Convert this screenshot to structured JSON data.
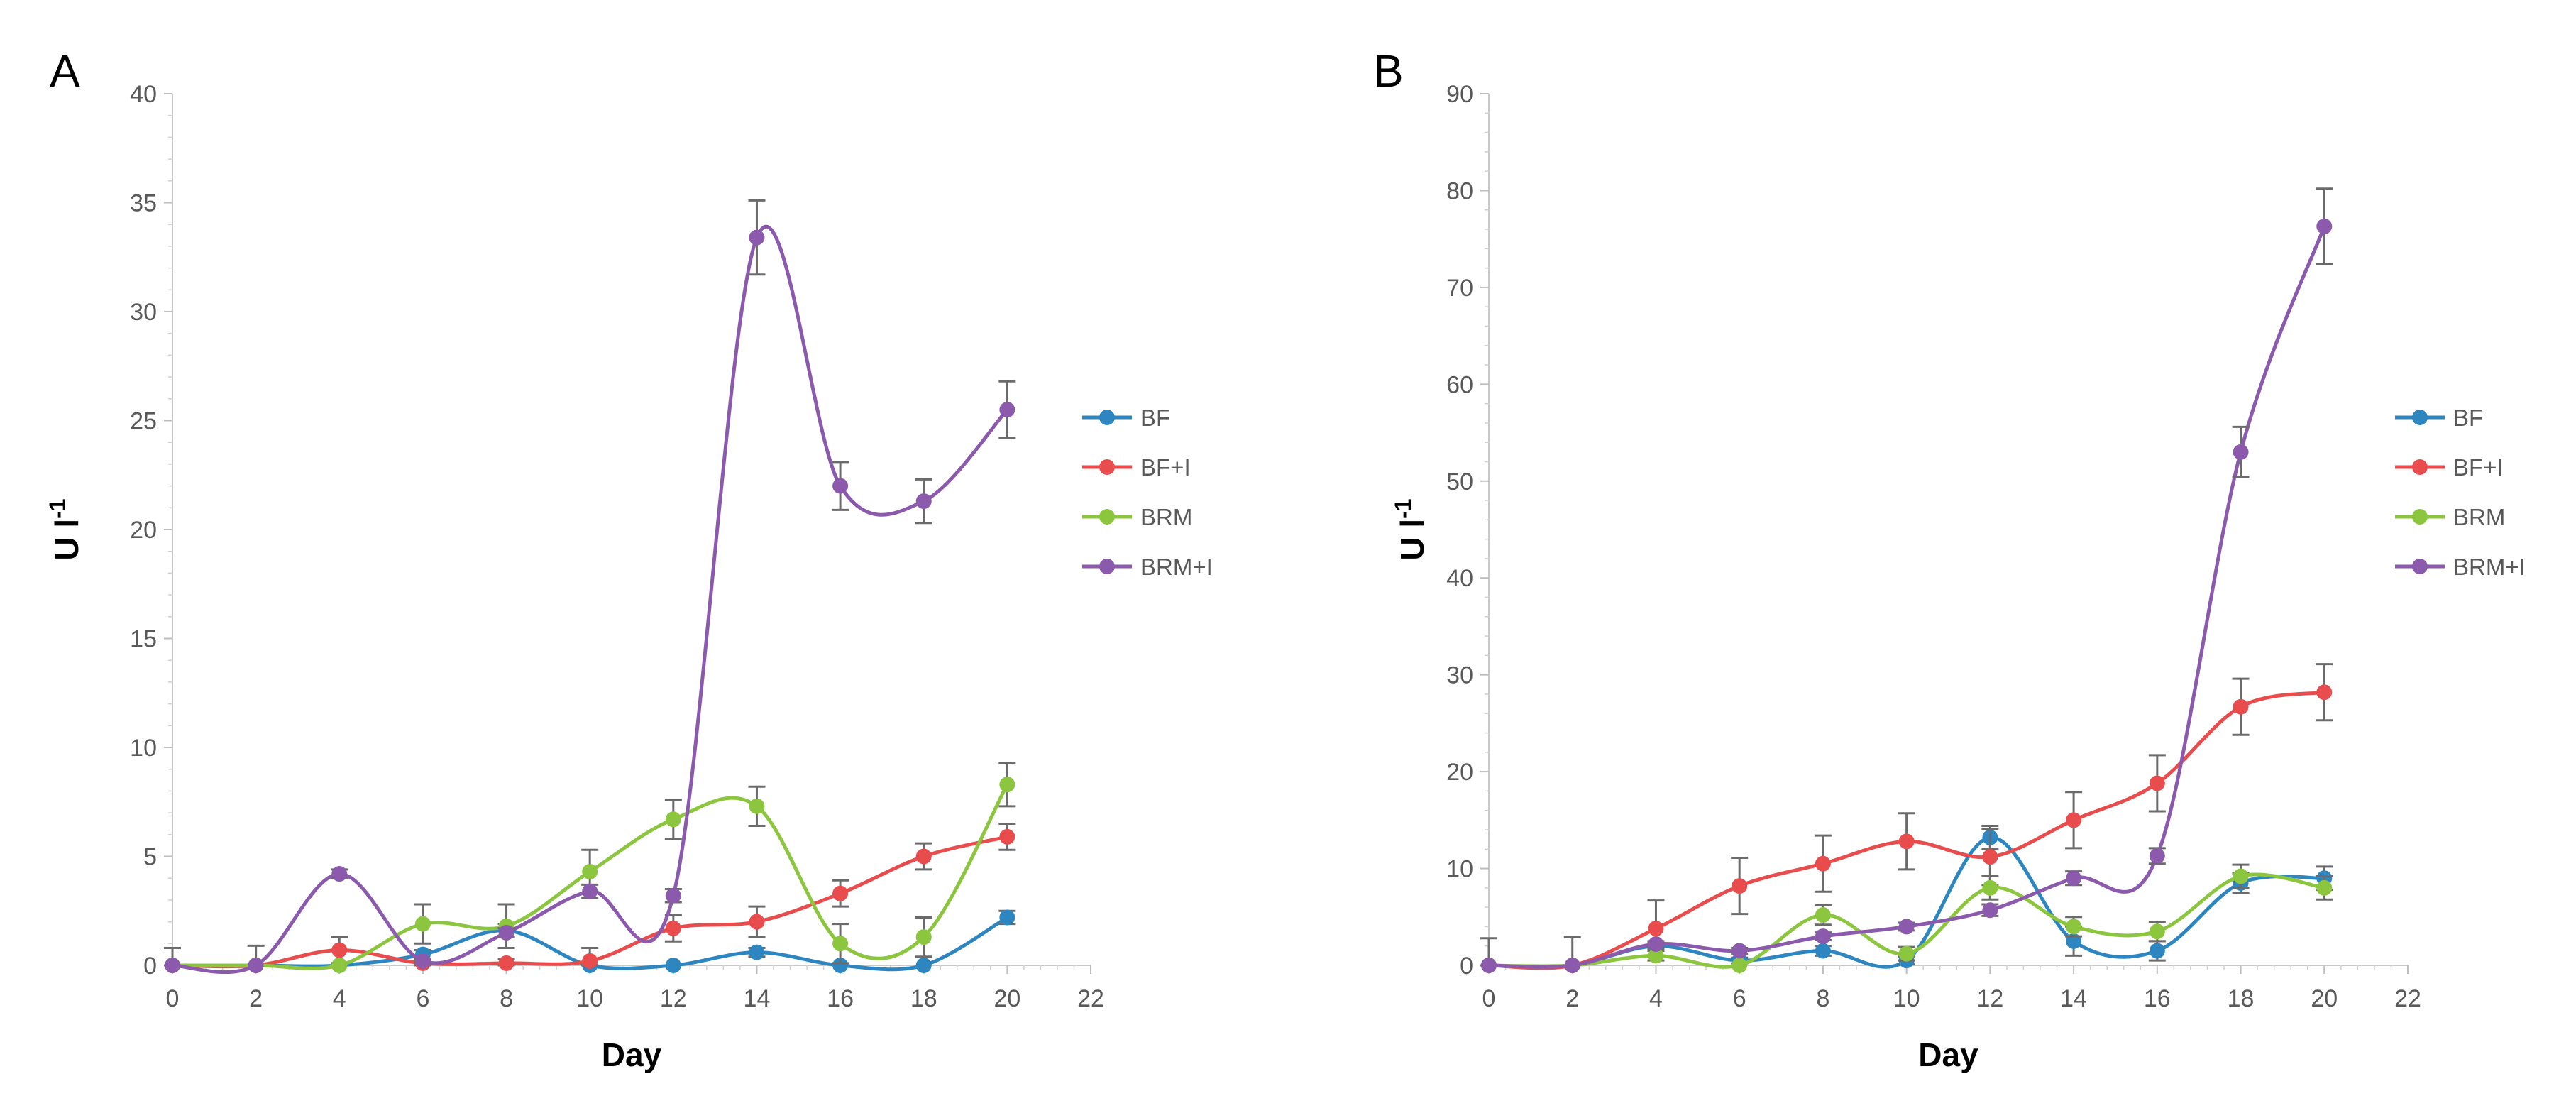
{
  "chart_data": [
    {
      "type": "line",
      "panel_label": "A",
      "xlabel": "Day",
      "ylabel_base": "U l",
      "ylabel_sup": "-1",
      "xlim": [
        0,
        22
      ],
      "ylim": [
        0,
        40
      ],
      "xticks": [
        0,
        2,
        4,
        6,
        8,
        10,
        12,
        14,
        16,
        18,
        20,
        22
      ],
      "yticks": [
        0,
        5,
        10,
        15,
        20,
        25,
        30,
        35,
        40
      ],
      "x": [
        0,
        2,
        4,
        6,
        8,
        10,
        12,
        14,
        16,
        18,
        20
      ],
      "legend_position": "right",
      "series": [
        {
          "name": "BF",
          "color": "#2e86c1",
          "values": [
            0,
            0,
            0,
            0.5,
            1.6,
            0,
            0,
            0.6,
            0,
            0,
            2.2
          ],
          "errors": [
            0,
            0,
            0,
            0.2,
            0.3,
            0,
            0,
            0.2,
            0,
            0,
            0.3
          ]
        },
        {
          "name": "BF+I",
          "color": "#e84c4c",
          "values": [
            0,
            0,
            0.7,
            0.1,
            0.1,
            0.2,
            1.7,
            2.0,
            3.3,
            5.0,
            5.9
          ],
          "errors": [
            0.8,
            0.9,
            0.6,
            0.1,
            0.2,
            0.6,
            0.6,
            0.7,
            0.6,
            0.6,
            0.6
          ]
        },
        {
          "name": "BRM",
          "color": "#8cc63f",
          "values": [
            0,
            0,
            0,
            1.9,
            1.8,
            4.3,
            6.7,
            7.3,
            1.0,
            1.3,
            8.3
          ],
          "errors": [
            0,
            0,
            0,
            0.9,
            1.0,
            1.0,
            0.9,
            0.9,
            0.9,
            0.9,
            1.0
          ]
        },
        {
          "name": "BRM+I",
          "color": "#8b5aac",
          "values": [
            0,
            0,
            4.2,
            0.2,
            1.5,
            3.4,
            3.2,
            33.4,
            22.0,
            21.3,
            25.5
          ],
          "errors": [
            0,
            0,
            0.2,
            0.1,
            0.2,
            0.3,
            0.3,
            1.7,
            1.1,
            1.0,
            1.3
          ]
        }
      ]
    },
    {
      "type": "line",
      "panel_label": "B",
      "xlabel": "Day",
      "ylabel_base": "U l",
      "ylabel_sup": "-1",
      "xlim": [
        0,
        22
      ],
      "ylim": [
        0,
        90
      ],
      "xticks": [
        0,
        2,
        4,
        6,
        8,
        10,
        12,
        14,
        16,
        18,
        20,
        22
      ],
      "yticks": [
        0,
        10,
        20,
        30,
        40,
        50,
        60,
        70,
        80,
        90
      ],
      "x": [
        0,
        2,
        4,
        6,
        8,
        10,
        12,
        14,
        16,
        18,
        20
      ],
      "legend_position": "right",
      "series": [
        {
          "name": "BF",
          "color": "#2e86c1",
          "values": [
            0,
            0,
            2.0,
            0.5,
            1.5,
            0.5,
            13.2,
            2.5,
            1.5,
            8.5,
            9.0
          ],
          "errors": [
            0,
            0,
            0.3,
            0.3,
            0.5,
            0.4,
            1.2,
            1.5,
            1.0,
            1.0,
            1.2
          ]
        },
        {
          "name": "BF+I",
          "color": "#e84c4c",
          "values": [
            0,
            0,
            3.8,
            8.2,
            10.5,
            12.8,
            11.2,
            15.0,
            18.8,
            26.7,
            28.2
          ],
          "errors": [
            2.8,
            2.9,
            2.9,
            2.9,
            2.9,
            2.9,
            2.9,
            2.9,
            2.9,
            2.9,
            2.9
          ]
        },
        {
          "name": "BRM",
          "color": "#8cc63f",
          "values": [
            0,
            0,
            1.0,
            0,
            5.2,
            1.2,
            8.0,
            4.0,
            3.5,
            9.2,
            8.0
          ],
          "errors": [
            0,
            0,
            0.5,
            0,
            1.0,
            0.7,
            1.2,
            1.0,
            1.0,
            1.2,
            1.2
          ]
        },
        {
          "name": "BRM+I",
          "color": "#8b5aac",
          "values": [
            0,
            0,
            2.2,
            1.5,
            3.0,
            4.0,
            5.7,
            9.0,
            11.3,
            53.0,
            76.3
          ],
          "errors": [
            0,
            0,
            0.3,
            0.3,
            0.4,
            0.4,
            0.6,
            0.7,
            0.8,
            2.6,
            3.9
          ]
        }
      ]
    }
  ]
}
